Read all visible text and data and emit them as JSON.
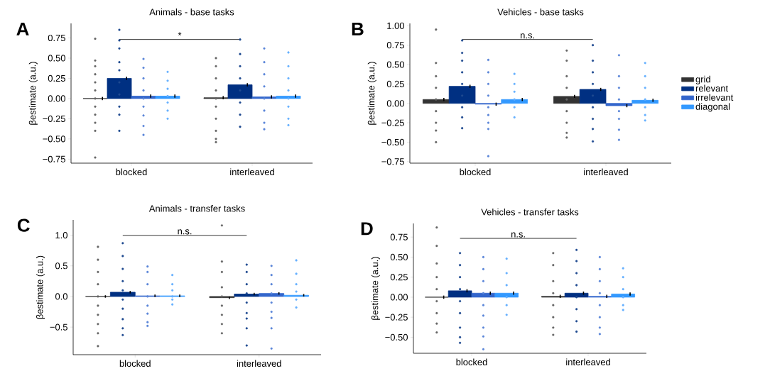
{
  "chart_data": [
    {
      "type": "bar",
      "title": "Animals - base tasks",
      "ylabel": "βestimate (a.u.)",
      "categories": [
        "blocked",
        "interleaved"
      ],
      "ylim": [
        -0.8,
        0.93
      ],
      "yticks": [
        {
          "value": -0.75,
          "label": "−0.75"
        },
        {
          "value": -0.5,
          "label": "−0.50"
        },
        {
          "value": -0.25,
          "label": "−0.25"
        },
        {
          "value": 0,
          "label": "0.00"
        },
        {
          "value": 0.25,
          "label": "0.25"
        },
        {
          "value": 0.5,
          "label": "0.50"
        },
        {
          "value": 0.75,
          "label": "0.75"
        }
      ],
      "annotations": [
        "A",
        "*"
      ],
      "series": [
        {
          "color": "#333333",
          "values": [
            0.0,
            0.01
          ],
          "errors": [
            0.02,
            0.02
          ]
        },
        {
          "color": "#003082",
          "values": [
            0.25,
            0.17
          ],
          "errors": [
            0.02,
            0.02
          ]
        },
        {
          "color": "#3366cc",
          "values": [
            0.03,
            0.02
          ],
          "errors": [
            0.02,
            0.02
          ]
        },
        {
          "color": "#3399ff",
          "values": [
            0.03,
            0.03
          ],
          "errors": [
            0.02,
            0.02
          ]
        },
        {
          "type": "scatter",
          "color": "#666666",
          "x": [
            "blocked",
            "blocked",
            "blocked",
            "blocked",
            "blocked",
            "blocked",
            "blocked",
            "blocked",
            "blocked",
            "blocked",
            "blocked",
            "blocked",
            "interleaved",
            "interleaved",
            "interleaved",
            "interleaved",
            "interleaved",
            "interleaved",
            "interleaved",
            "interleaved",
            "interleaved",
            "interleaved"
          ],
          "values": [
            0.74,
            0.47,
            0.4,
            0.3,
            0.2,
            0.1,
            0.0,
            -0.1,
            -0.2,
            -0.3,
            -0.4,
            -0.73,
            0.5,
            0.4,
            0.25,
            0.1,
            0.0,
            -0.1,
            -0.25,
            -0.4,
            -0.5,
            -0.54
          ]
        },
        {
          "type": "scatter",
          "color": "#1f4a90",
          "x": [
            "blocked",
            "blocked",
            "blocked",
            "blocked",
            "blocked",
            "blocked",
            "blocked",
            "blocked",
            "blocked",
            "blocked",
            "interleaved",
            "interleaved",
            "interleaved",
            "interleaved",
            "interleaved",
            "interleaved",
            "interleaved",
            "interleaved"
          ],
          "values": [
            0.85,
            0.72,
            0.62,
            0.45,
            0.35,
            0.2,
            0.05,
            -0.1,
            -0.2,
            -0.4,
            0.73,
            0.55,
            0.4,
            0.25,
            0.1,
            -0.05,
            -0.2,
            -0.35
          ]
        },
        {
          "type": "scatter",
          "color": "#5a85d8",
          "x": [
            "blocked",
            "blocked",
            "blocked",
            "blocked",
            "blocked",
            "blocked",
            "blocked",
            "blocked",
            "blocked",
            "interleaved",
            "interleaved",
            "interleaved",
            "interleaved",
            "interleaved",
            "interleaved",
            "interleaved",
            "interleaved"
          ],
          "values": [
            0.49,
            0.38,
            0.25,
            0.1,
            0.0,
            -0.1,
            -0.21,
            -0.34,
            -0.45,
            0.62,
            0.45,
            0.3,
            0.15,
            0.0,
            -0.15,
            -0.3,
            -0.38
          ]
        },
        {
          "type": "scatter",
          "color": "#66b0ff",
          "x": [
            "blocked",
            "blocked",
            "blocked",
            "blocked",
            "blocked",
            "blocked",
            "blocked",
            "interleaved",
            "interleaved",
            "interleaved",
            "interleaved",
            "interleaved",
            "interleaved",
            "interleaved",
            "interleaved"
          ],
          "values": [
            0.33,
            0.22,
            0.12,
            0.03,
            -0.05,
            -0.15,
            -0.25,
            0.57,
            0.4,
            0.25,
            0.1,
            0.0,
            -0.1,
            -0.25,
            -0.33
          ]
        }
      ]
    },
    {
      "type": "bar",
      "title": "Vehicles - base tasks",
      "ylabel": "βestimate (a.u.)",
      "categories": [
        "blocked",
        "interleaved"
      ],
      "ylim": [
        -0.77,
        1.03
      ],
      "legend": "right",
      "yticks": [
        {
          "value": -0.75,
          "label": "−0.75"
        },
        {
          "value": -0.5,
          "label": "−0.50"
        },
        {
          "value": -0.25,
          "label": "−0.25"
        },
        {
          "value": 0,
          "label": "0.00"
        },
        {
          "value": 0.25,
          "label": "0.25"
        },
        {
          "value": 0.5,
          "label": "0.50"
        },
        {
          "value": 0.75,
          "label": "0.75"
        },
        {
          "value": 1,
          "label": "1.00"
        }
      ],
      "annotations": [
        "B",
        "n.s."
      ],
      "series": [
        {
          "name": "grid",
          "color": "#333333",
          "values": [
            0.05,
            0.09
          ],
          "errors": [
            0.02,
            0.02
          ]
        },
        {
          "name": "relevant",
          "color": "#003082",
          "values": [
            0.22,
            0.18
          ],
          "errors": [
            0.02,
            0.02
          ]
        },
        {
          "name": "irrelevant",
          "color": "#3366cc",
          "values": [
            -0.01,
            -0.03
          ],
          "errors": [
            0.02,
            0.02
          ]
        },
        {
          "name": "diagonal",
          "color": "#3399ff",
          "values": [
            0.05,
            0.04
          ],
          "errors": [
            0.02,
            0.02
          ]
        },
        {
          "type": "scatter",
          "color": "#666666",
          "x": [
            "blocked",
            "blocked",
            "blocked",
            "blocked",
            "blocked",
            "blocked",
            "blocked",
            "blocked",
            "blocked",
            "interleaved",
            "interleaved",
            "interleaved",
            "interleaved",
            "interleaved",
            "interleaved",
            "interleaved",
            "interleaved",
            "interleaved"
          ],
          "values": [
            0.95,
            0.52,
            0.35,
            0.2,
            0.05,
            -0.1,
            -0.25,
            -0.35,
            -0.5,
            0.68,
            0.55,
            0.35,
            0.2,
            0.05,
            -0.1,
            -0.25,
            -0.38,
            -0.44
          ]
        },
        {
          "type": "scatter",
          "color": "#1f4a90",
          "x": [
            "blocked",
            "blocked",
            "blocked",
            "blocked",
            "blocked",
            "blocked",
            "blocked",
            "blocked",
            "blocked",
            "interleaved",
            "interleaved",
            "interleaved",
            "interleaved",
            "interleaved",
            "interleaved",
            "interleaved",
            "interleaved",
            "interleaved"
          ],
          "values": [
            0.81,
            0.65,
            0.55,
            0.4,
            0.25,
            0.1,
            -0.05,
            -0.18,
            -0.32,
            0.75,
            0.55,
            0.4,
            0.25,
            0.1,
            -0.05,
            -0.2,
            -0.33,
            -0.49
          ]
        },
        {
          "type": "scatter",
          "color": "#5a85d8",
          "x": [
            "blocked",
            "blocked",
            "blocked",
            "blocked",
            "blocked",
            "blocked",
            "blocked",
            "blocked",
            "blocked",
            "interleaved",
            "interleaved",
            "interleaved",
            "interleaved",
            "interleaved",
            "interleaved",
            "interleaved",
            "interleaved"
          ],
          "values": [
            0.56,
            0.4,
            0.25,
            0.1,
            -0.05,
            -0.15,
            -0.25,
            -0.33,
            -0.68,
            0.62,
            0.35,
            0.2,
            0.05,
            -0.1,
            -0.2,
            -0.34,
            -0.47
          ]
        },
        {
          "type": "scatter",
          "color": "#66b0ff",
          "x": [
            "blocked",
            "blocked",
            "blocked",
            "blocked",
            "blocked",
            "blocked",
            "interleaved",
            "interleaved",
            "interleaved",
            "interleaved",
            "interleaved",
            "interleaved",
            "interleaved"
          ],
          "values": [
            0.38,
            0.25,
            0.15,
            0.05,
            -0.05,
            -0.18,
            0.52,
            0.35,
            0.2,
            0.05,
            -0.05,
            -0.15,
            -0.22
          ]
        }
      ]
    },
    {
      "type": "bar",
      "title": "Animals - transfer tasks",
      "ylabel": "βestimate (a.u.)",
      "categories": [
        "blocked",
        "interleaved"
      ],
      "ylim": [
        -0.95,
        1.25
      ],
      "yticks": [
        {
          "value": -0.5,
          "label": "−0.5"
        },
        {
          "value": 0,
          "label": "0.0"
        },
        {
          "value": 0.5,
          "label": "0.5"
        },
        {
          "value": 1,
          "label": "1.0"
        }
      ],
      "annotations": [
        "C",
        "n.s."
      ],
      "series": [
        {
          "color": "#333333",
          "values": [
            0.0,
            -0.02
          ],
          "errors": [
            0.02,
            0.02
          ]
        },
        {
          "color": "#003082",
          "values": [
            0.07,
            0.04
          ],
          "errors": [
            0.02,
            0.02
          ]
        },
        {
          "color": "#3366cc",
          "values": [
            0.01,
            0.05
          ],
          "errors": [
            0.02,
            0.02
          ]
        },
        {
          "color": "#3399ff",
          "values": [
            0.01,
            0.02
          ],
          "errors": [
            0.02,
            0.02
          ]
        },
        {
          "type": "scatter",
          "color": "#666666",
          "x": [
            "blocked",
            "blocked",
            "blocked",
            "blocked",
            "blocked",
            "blocked",
            "blocked",
            "blocked",
            "blocked",
            "blocked",
            "interleaved",
            "interleaved",
            "interleaved",
            "interleaved",
            "interleaved",
            "interleaved",
            "interleaved",
            "interleaved",
            "interleaved"
          ],
          "values": [
            0.81,
            0.6,
            0.4,
            0.2,
            0.0,
            -0.15,
            -0.3,
            -0.45,
            -0.6,
            -0.81,
            1.16,
            0.57,
            0.4,
            0.15,
            0.0,
            -0.15,
            -0.3,
            -0.45,
            -0.6
          ]
        },
        {
          "type": "scatter",
          "color": "#1f4a90",
          "x": [
            "blocked",
            "blocked",
            "blocked",
            "blocked",
            "blocked",
            "blocked",
            "blocked",
            "blocked",
            "blocked",
            "blocked",
            "interleaved",
            "interleaved",
            "interleaved",
            "interleaved",
            "interleaved",
            "interleaved",
            "interleaved",
            "interleaved",
            "interleaved"
          ],
          "values": [
            0.87,
            0.66,
            0.45,
            0.25,
            0.1,
            -0.05,
            -0.2,
            -0.37,
            -0.52,
            -0.63,
            0.52,
            0.4,
            0.2,
            0.05,
            -0.1,
            -0.27,
            -0.36,
            -0.52,
            -0.8
          ]
        },
        {
          "type": "scatter",
          "color": "#5a85d8",
          "x": [
            "blocked",
            "blocked",
            "blocked",
            "blocked",
            "blocked",
            "blocked",
            "blocked",
            "blocked",
            "interleaved",
            "interleaved",
            "interleaved",
            "interleaved",
            "interleaved",
            "interleaved",
            "interleaved",
            "interleaved",
            "interleaved"
          ],
          "values": [
            0.49,
            0.4,
            0.2,
            0.0,
            -0.15,
            -0.28,
            -0.42,
            -0.48,
            0.5,
            0.35,
            0.2,
            0.05,
            -0.1,
            -0.25,
            -0.35,
            -0.52,
            -0.85
          ]
        },
        {
          "type": "scatter",
          "color": "#66b0ff",
          "x": [
            "blocked",
            "blocked",
            "blocked",
            "blocked",
            "blocked",
            "blocked",
            "interleaved",
            "interleaved",
            "interleaved",
            "interleaved",
            "interleaved",
            "interleaved"
          ],
          "values": [
            0.35,
            0.2,
            0.1,
            0.0,
            -0.05,
            -0.13,
            0.59,
            0.37,
            0.2,
            0.08,
            -0.05,
            -0.18
          ]
        }
      ]
    },
    {
      "type": "bar",
      "title": "Vehicles - transfer tasks",
      "ylabel": "βestimate (a.u.)",
      "categories": [
        "blocked",
        "interleaved"
      ],
      "ylim": [
        -0.7,
        0.92
      ],
      "yticks": [
        {
          "value": -0.5,
          "label": "−0.50"
        },
        {
          "value": -0.25,
          "label": "−0.25"
        },
        {
          "value": 0,
          "label": "0.00"
        },
        {
          "value": 0.25,
          "label": "0.25"
        },
        {
          "value": 0.5,
          "label": "0.50"
        },
        {
          "value": 0.75,
          "label": "0.75"
        }
      ],
      "annotations": [
        "D",
        "n.s."
      ],
      "series": [
        {
          "color": "#333333",
          "values": [
            0.0,
            0.01
          ],
          "errors": [
            0.02,
            0.02
          ]
        },
        {
          "color": "#003082",
          "values": [
            0.08,
            0.05
          ],
          "errors": [
            0.02,
            0.02
          ]
        },
        {
          "color": "#3366cc",
          "values": [
            0.05,
            0.01
          ],
          "errors": [
            0.02,
            0.02
          ]
        },
        {
          "color": "#3399ff",
          "values": [
            0.05,
            0.04
          ],
          "errors": [
            0.02,
            0.02
          ]
        },
        {
          "type": "scatter",
          "color": "#666666",
          "x": [
            "blocked",
            "blocked",
            "blocked",
            "blocked",
            "blocked",
            "blocked",
            "blocked",
            "blocked",
            "blocked",
            "interleaved",
            "interleaved",
            "interleaved",
            "interleaved",
            "interleaved",
            "interleaved",
            "interleaved",
            "interleaved"
          ],
          "values": [
            0.87,
            0.64,
            0.42,
            0.25,
            0.1,
            -0.05,
            -0.2,
            -0.33,
            -0.44,
            0.55,
            0.4,
            0.2,
            0.05,
            -0.1,
            -0.25,
            -0.38,
            -0.47
          ]
        },
        {
          "type": "scatter",
          "color": "#1f4a90",
          "x": [
            "blocked",
            "blocked",
            "blocked",
            "blocked",
            "blocked",
            "blocked",
            "blocked",
            "blocked",
            "blocked",
            "interleaved",
            "interleaved",
            "interleaved",
            "interleaved",
            "interleaved",
            "interleaved",
            "interleaved",
            "interleaved"
          ],
          "values": [
            0.55,
            0.4,
            0.25,
            0.1,
            -0.05,
            -0.2,
            -0.38,
            -0.5,
            -0.57,
            0.59,
            0.45,
            0.3,
            0.15,
            0.0,
            -0.15,
            -0.3,
            -0.43
          ]
        },
        {
          "type": "scatter",
          "color": "#5a85d8",
          "x": [
            "blocked",
            "blocked",
            "blocked",
            "blocked",
            "blocked",
            "blocked",
            "blocked",
            "blocked",
            "blocked",
            "interleaved",
            "interleaved",
            "interleaved",
            "interleaved",
            "interleaved",
            "interleaved",
            "interleaved",
            "interleaved"
          ],
          "values": [
            0.5,
            0.35,
            0.2,
            0.05,
            -0.1,
            -0.23,
            -0.38,
            -0.49,
            -0.65,
            0.5,
            0.35,
            0.2,
            0.05,
            -0.1,
            -0.25,
            -0.38,
            -0.46
          ]
        },
        {
          "type": "scatter",
          "color": "#66b0ff",
          "x": [
            "blocked",
            "blocked",
            "blocked",
            "blocked",
            "blocked",
            "blocked",
            "interleaved",
            "interleaved",
            "interleaved",
            "interleaved",
            "interleaved",
            "interleaved"
          ],
          "values": [
            0.48,
            0.3,
            0.15,
            0.0,
            -0.1,
            -0.22,
            0.36,
            0.25,
            0.1,
            0.0,
            -0.1,
            -0.16
          ]
        }
      ]
    }
  ]
}
